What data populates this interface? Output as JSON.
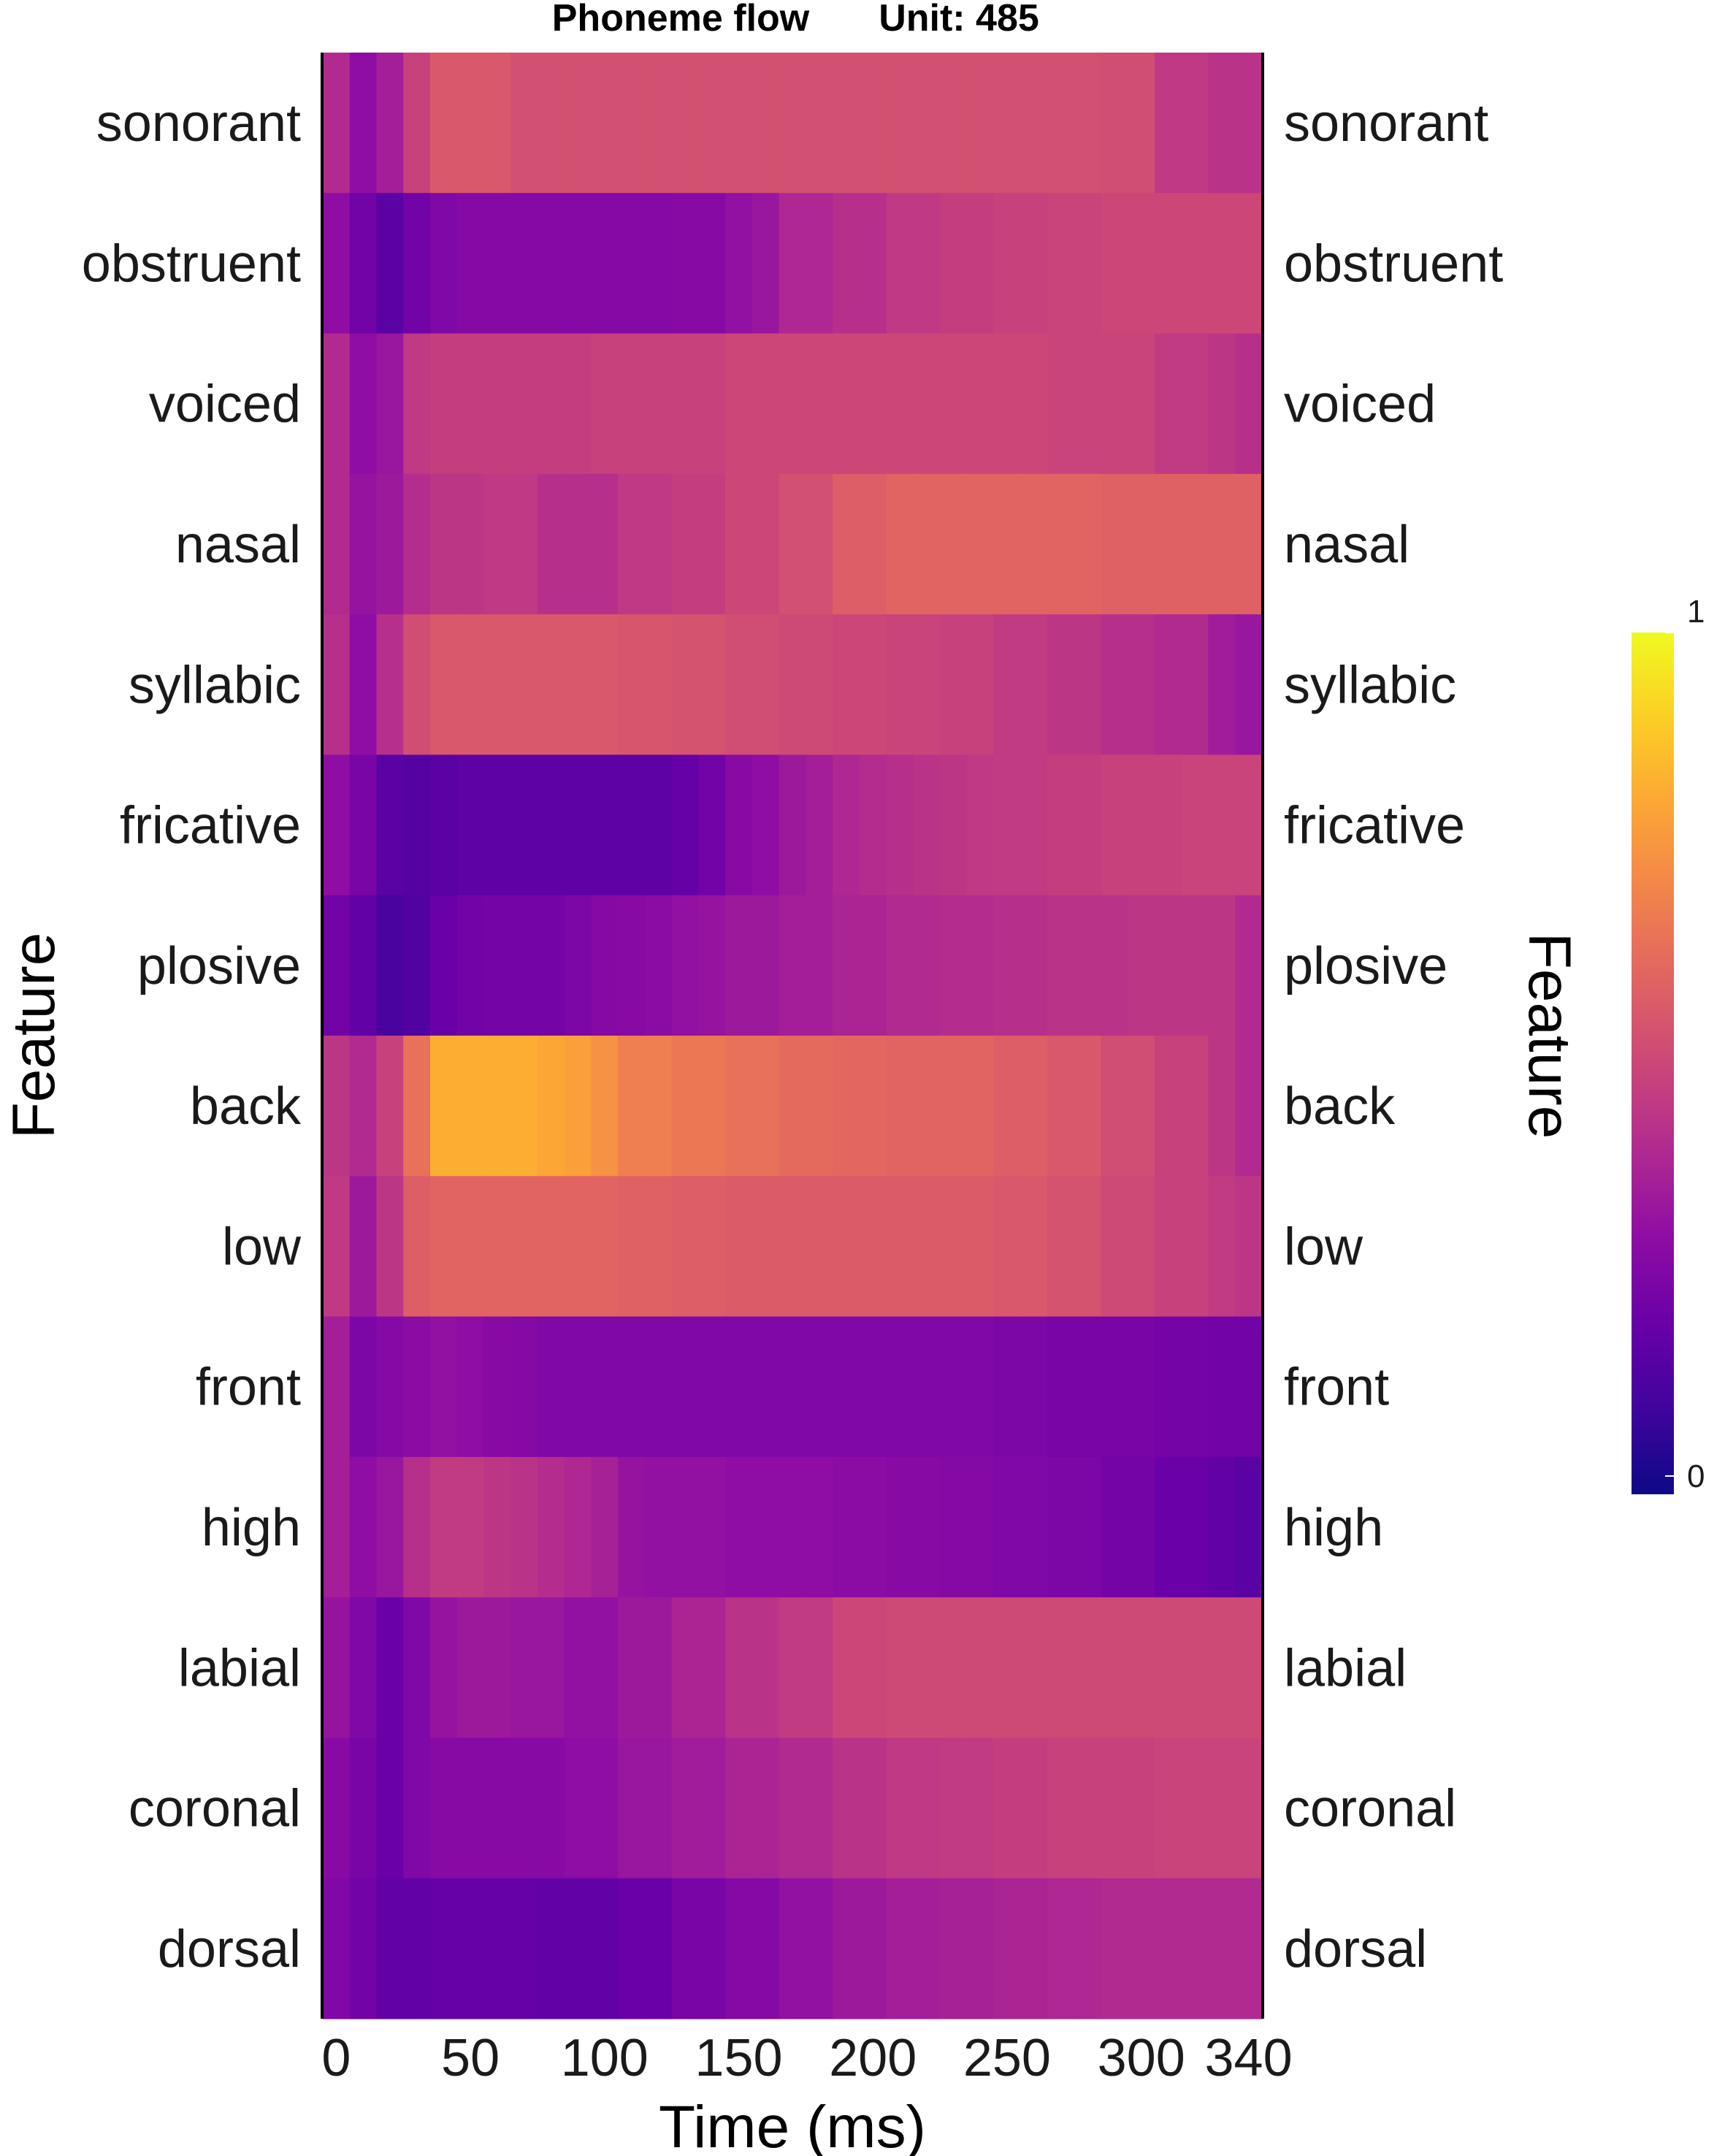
{
  "chart_data": {
    "type": "heatmap",
    "title_left": "Phoneme flow",
    "title_right": "Unit: 485",
    "xlabel": "Time (ms)",
    "ylabel_left": "Feature",
    "ylabel_right": "Feature",
    "x_ticks": [
      0,
      50,
      100,
      150,
      200,
      250,
      300,
      340
    ],
    "xlim": [
      -5,
      345
    ],
    "x_bin_edges": [
      -5,
      5,
      15,
      25,
      35,
      45,
      55,
      65,
      75,
      85,
      95,
      105,
      115,
      125,
      135,
      145,
      155,
      165,
      175,
      185,
      195,
      205,
      215,
      225,
      235,
      245,
      255,
      265,
      275,
      285,
      295,
      305,
      315,
      325,
      335,
      345
    ],
    "features": [
      "sonorant",
      "obstruent",
      "voiced",
      "nasal",
      "syllabic",
      "fricative",
      "plosive",
      "back",
      "low",
      "front",
      "high",
      "labial",
      "coronal",
      "dorsal"
    ],
    "colorscale": {
      "name": "plasma",
      "min": 0,
      "max": 1,
      "tick_labels": [
        "1",
        "0"
      ],
      "stops": [
        "#0d0887",
        "#41049d",
        "#6a00a8",
        "#8f0da4",
        "#b12a90",
        "#cc4778",
        "#e16462",
        "#f2844b",
        "#fca636",
        "#fcce25",
        "#f0f921"
      ]
    },
    "values": [
      [
        0.4,
        0.3,
        0.36,
        0.48,
        0.56,
        0.56,
        0.56,
        0.53,
        0.53,
        0.53,
        0.53,
        0.53,
        0.53,
        0.53,
        0.53,
        0.53,
        0.53,
        0.53,
        0.53,
        0.53,
        0.53,
        0.53,
        0.53,
        0.53,
        0.53,
        0.53,
        0.53,
        0.53,
        0.53,
        0.52,
        0.52,
        0.45,
        0.45,
        0.43,
        0.43
      ],
      [
        0.3,
        0.22,
        0.16,
        0.22,
        0.26,
        0.27,
        0.27,
        0.27,
        0.27,
        0.27,
        0.27,
        0.27,
        0.27,
        0.28,
        0.28,
        0.31,
        0.33,
        0.39,
        0.39,
        0.42,
        0.42,
        0.45,
        0.45,
        0.47,
        0.47,
        0.48,
        0.48,
        0.49,
        0.49,
        0.5,
        0.5,
        0.5,
        0.5,
        0.5,
        0.5
      ],
      [
        0.4,
        0.3,
        0.33,
        0.45,
        0.47,
        0.47,
        0.47,
        0.47,
        0.47,
        0.47,
        0.48,
        0.48,
        0.48,
        0.48,
        0.48,
        0.5,
        0.5,
        0.5,
        0.5,
        0.5,
        0.5,
        0.5,
        0.5,
        0.5,
        0.5,
        0.5,
        0.5,
        0.49,
        0.49,
        0.49,
        0.49,
        0.46,
        0.46,
        0.44,
        0.42
      ],
      [
        0.4,
        0.32,
        0.34,
        0.41,
        0.44,
        0.44,
        0.45,
        0.45,
        0.42,
        0.42,
        0.42,
        0.45,
        0.45,
        0.47,
        0.47,
        0.5,
        0.5,
        0.53,
        0.53,
        0.58,
        0.58,
        0.6,
        0.6,
        0.6,
        0.6,
        0.6,
        0.6,
        0.6,
        0.6,
        0.59,
        0.59,
        0.59,
        0.59,
        0.59,
        0.59
      ],
      [
        0.42,
        0.3,
        0.42,
        0.52,
        0.56,
        0.56,
        0.56,
        0.56,
        0.56,
        0.56,
        0.56,
        0.55,
        0.55,
        0.54,
        0.54,
        0.52,
        0.52,
        0.51,
        0.51,
        0.5,
        0.5,
        0.49,
        0.49,
        0.48,
        0.48,
        0.46,
        0.46,
        0.44,
        0.44,
        0.42,
        0.42,
        0.4,
        0.4,
        0.35,
        0.33
      ],
      [
        0.3,
        0.24,
        0.16,
        0.15,
        0.16,
        0.17,
        0.17,
        0.17,
        0.17,
        0.17,
        0.17,
        0.17,
        0.17,
        0.19,
        0.22,
        0.28,
        0.3,
        0.34,
        0.36,
        0.39,
        0.41,
        0.42,
        0.43,
        0.44,
        0.45,
        0.46,
        0.46,
        0.47,
        0.47,
        0.48,
        0.48,
        0.48,
        0.49,
        0.49,
        0.49
      ],
      [
        0.22,
        0.18,
        0.12,
        0.14,
        0.2,
        0.22,
        0.23,
        0.23,
        0.23,
        0.25,
        0.27,
        0.28,
        0.29,
        0.31,
        0.32,
        0.34,
        0.34,
        0.36,
        0.36,
        0.38,
        0.38,
        0.4,
        0.4,
        0.41,
        0.41,
        0.42,
        0.42,
        0.43,
        0.43,
        0.43,
        0.44,
        0.44,
        0.44,
        0.44,
        0.4
      ],
      [
        0.44,
        0.4,
        0.48,
        0.64,
        0.82,
        0.82,
        0.82,
        0.82,
        0.8,
        0.78,
        0.74,
        0.68,
        0.68,
        0.66,
        0.66,
        0.64,
        0.64,
        0.62,
        0.62,
        0.61,
        0.61,
        0.6,
        0.6,
        0.6,
        0.6,
        0.58,
        0.58,
        0.56,
        0.56,
        0.52,
        0.52,
        0.48,
        0.48,
        0.44,
        0.4
      ],
      [
        0.45,
        0.34,
        0.44,
        0.58,
        0.6,
        0.6,
        0.6,
        0.6,
        0.6,
        0.6,
        0.6,
        0.59,
        0.59,
        0.58,
        0.58,
        0.57,
        0.57,
        0.57,
        0.57,
        0.57,
        0.57,
        0.57,
        0.57,
        0.57,
        0.57,
        0.56,
        0.56,
        0.54,
        0.54,
        0.51,
        0.51,
        0.48,
        0.48,
        0.46,
        0.44
      ],
      [
        0.36,
        0.25,
        0.27,
        0.29,
        0.31,
        0.3,
        0.28,
        0.27,
        0.26,
        0.26,
        0.26,
        0.26,
        0.26,
        0.26,
        0.26,
        0.26,
        0.26,
        0.26,
        0.26,
        0.26,
        0.26,
        0.26,
        0.26,
        0.26,
        0.26,
        0.25,
        0.25,
        0.24,
        0.24,
        0.24,
        0.24,
        0.23,
        0.23,
        0.22,
        0.22
      ],
      [
        0.36,
        0.3,
        0.33,
        0.42,
        0.46,
        0.46,
        0.44,
        0.43,
        0.41,
        0.39,
        0.37,
        0.32,
        0.31,
        0.31,
        0.31,
        0.3,
        0.3,
        0.3,
        0.3,
        0.29,
        0.29,
        0.28,
        0.28,
        0.27,
        0.27,
        0.26,
        0.26,
        0.25,
        0.25,
        0.23,
        0.23,
        0.2,
        0.2,
        0.18,
        0.16
      ],
      [
        0.32,
        0.26,
        0.2,
        0.26,
        0.32,
        0.34,
        0.34,
        0.33,
        0.33,
        0.31,
        0.31,
        0.34,
        0.34,
        0.38,
        0.38,
        0.43,
        0.43,
        0.46,
        0.46,
        0.5,
        0.5,
        0.51,
        0.51,
        0.51,
        0.51,
        0.51,
        0.51,
        0.51,
        0.51,
        0.51,
        0.51,
        0.51,
        0.51,
        0.51,
        0.51
      ],
      [
        0.28,
        0.24,
        0.2,
        0.26,
        0.28,
        0.28,
        0.28,
        0.28,
        0.28,
        0.3,
        0.3,
        0.33,
        0.33,
        0.35,
        0.35,
        0.38,
        0.38,
        0.4,
        0.4,
        0.43,
        0.43,
        0.45,
        0.45,
        0.46,
        0.46,
        0.47,
        0.47,
        0.48,
        0.48,
        0.48,
        0.48,
        0.49,
        0.49,
        0.49,
        0.49
      ],
      [
        0.26,
        0.22,
        0.18,
        0.18,
        0.19,
        0.19,
        0.19,
        0.19,
        0.18,
        0.18,
        0.18,
        0.2,
        0.2,
        0.24,
        0.24,
        0.27,
        0.27,
        0.31,
        0.31,
        0.34,
        0.34,
        0.36,
        0.36,
        0.37,
        0.37,
        0.38,
        0.38,
        0.39,
        0.39,
        0.4,
        0.4,
        0.4,
        0.4,
        0.4,
        0.4
      ]
    ],
    "grid": false,
    "legend": "right colorbar"
  }
}
